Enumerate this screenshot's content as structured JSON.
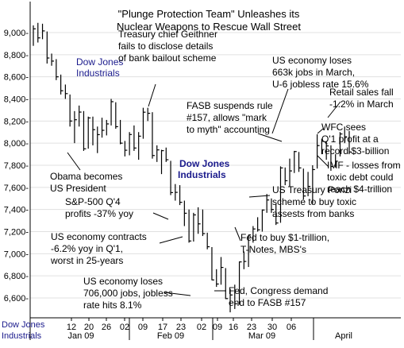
{
  "chart_data": {
    "type": "ohlc",
    "title_lines": [
      "\"Plunge Protection Team\" Unleashes its",
      "Nuclear Weapons to Rescue Wall Street"
    ],
    "series_name_lines": [
      "Dow Jones",
      "Industrials"
    ],
    "ylim": [
      6450,
      9150
    ],
    "y_ticks": [
      {
        "value": 9000,
        "label": "9,000-"
      },
      {
        "value": 8800,
        "label": "8,800-"
      },
      {
        "value": 8600,
        "label": "8,600-"
      },
      {
        "value": 8400,
        "label": "8,400-"
      },
      {
        "value": 8200,
        "label": "8,200-"
      },
      {
        "value": 8000,
        "label": "8,000-"
      },
      {
        "value": 7800,
        "label": "7,800-"
      },
      {
        "value": 7600,
        "label": "7,600-"
      },
      {
        "value": 7400,
        "label": "7,400-"
      },
      {
        "value": 7200,
        "label": "7,200-"
      },
      {
        "value": 7000,
        "label": "7,000-"
      },
      {
        "value": 6800,
        "label": "6,800-"
      },
      {
        "value": 6600,
        "label": "6,600-"
      }
    ],
    "x_tick_labels": [
      "12",
      "20",
      "26",
      "02",
      "09",
      "17",
      "23",
      "02",
      "09",
      "16",
      "23",
      "30",
      "06"
    ],
    "month_labels": [
      "Jan 09",
      "Feb 09",
      "Mar 09",
      "April"
    ],
    "x_axis_corner_label_lines": [
      "Dow Jones",
      "Industrials"
    ],
    "bars": [
      {
        "label": "Jan 02",
        "high": 9065,
        "low": 8880,
        "close": 9034
      },
      {
        "label": "Jan 05",
        "high": 9088,
        "low": 8910,
        "close": 8952
      },
      {
        "label": "Jan 06",
        "high": 9080,
        "low": 8940,
        "close": 9015
      },
      {
        "label": "Jan 07",
        "high": 9010,
        "low": 8720,
        "close": 8770
      },
      {
        "label": "Jan 08",
        "high": 8810,
        "low": 8700,
        "close": 8742
      },
      {
        "label": "Jan 09",
        "high": 8760,
        "low": 8570,
        "close": 8600
      },
      {
        "label": "Jan 12",
        "high": 8620,
        "low": 8440,
        "close": 8474
      },
      {
        "label": "Jan 13",
        "high": 8530,
        "low": 8400,
        "close": 8448
      },
      {
        "label": "Jan 14",
        "high": 8440,
        "low": 8150,
        "close": 8200
      },
      {
        "label": "Jan 15",
        "high": 8290,
        "low": 8000,
        "close": 8212
      },
      {
        "label": "Jan 16",
        "high": 8340,
        "low": 8150,
        "close": 8281
      },
      {
        "label": "Jan 20",
        "high": 8290,
        "low": 7930,
        "close": 7949
      },
      {
        "label": "Jan 21",
        "high": 8240,
        "low": 7950,
        "close": 8228
      },
      {
        "label": "Jan 22",
        "high": 8240,
        "low": 7980,
        "close": 8122
      },
      {
        "label": "Jan 23",
        "high": 8150,
        "low": 7910,
        "close": 8077
      },
      {
        "label": "Jan 26",
        "high": 8230,
        "low": 8050,
        "close": 8116
      },
      {
        "label": "Jan 27",
        "high": 8210,
        "low": 8070,
        "close": 8174
      },
      {
        "label": "Jan 28",
        "high": 8400,
        "low": 8160,
        "close": 8375
      },
      {
        "label": "Jan 29",
        "high": 8370,
        "low": 8130,
        "close": 8149
      },
      {
        "label": "Jan 30",
        "high": 8210,
        "low": 7990,
        "close": 8000
      },
      {
        "label": "Feb 02",
        "high": 8020,
        "low": 7880,
        "close": 7936
      },
      {
        "label": "Feb 03",
        "high": 8100,
        "low": 7890,
        "close": 8078
      },
      {
        "label": "Feb 04",
        "high": 8160,
        "low": 7930,
        "close": 7956
      },
      {
        "label": "Feb 05",
        "high": 8100,
        "low": 7850,
        "close": 8063
      },
      {
        "label": "Feb 06",
        "high": 8320,
        "low": 8040,
        "close": 8280
      },
      {
        "label": "Feb 09",
        "high": 8320,
        "low": 8200,
        "close": 8270
      },
      {
        "label": "Feb 10",
        "high": 8280,
        "low": 7860,
        "close": 7888
      },
      {
        "label": "Feb 11",
        "high": 7980,
        "low": 7830,
        "close": 7939
      },
      {
        "label": "Feb 12",
        "high": 7940,
        "low": 7720,
        "close": 7932
      },
      {
        "label": "Feb 13",
        "high": 7960,
        "low": 7830,
        "close": 7850
      },
      {
        "label": "Feb 17",
        "high": 7840,
        "low": 7530,
        "close": 7553
      },
      {
        "label": "Feb 18",
        "high": 7630,
        "low": 7480,
        "close": 7555
      },
      {
        "label": "Feb 19",
        "high": 7620,
        "low": 7440,
        "close": 7465
      },
      {
        "label": "Feb 20",
        "high": 7480,
        "low": 7250,
        "close": 7366
      },
      {
        "label": "Feb 23",
        "high": 7400,
        "low": 7100,
        "close": 7115
      },
      {
        "label": "Feb 24",
        "high": 7370,
        "low": 7110,
        "close": 7351
      },
      {
        "label": "Feb 25",
        "high": 7420,
        "low": 7180,
        "close": 7270
      },
      {
        "label": "Feb 26",
        "high": 7400,
        "low": 7160,
        "close": 7182
      },
      {
        "label": "Feb 27",
        "high": 7190,
        "low": 7040,
        "close": 7063
      },
      {
        "label": "Mar 02",
        "high": 7060,
        "low": 6760,
        "close": 6763
      },
      {
        "label": "Mar 03",
        "high": 6860,
        "low": 6700,
        "close": 6726
      },
      {
        "label": "Mar 04",
        "high": 6970,
        "low": 6720,
        "close": 6876
      },
      {
        "label": "Mar 05",
        "high": 6870,
        "low": 6590,
        "close": 6594
      },
      {
        "label": "Mar 06",
        "high": 6680,
        "low": 6470,
        "close": 6627
      },
      {
        "label": "Mar 09",
        "high": 6720,
        "low": 6500,
        "close": 6547
      },
      {
        "label": "Mar 10",
        "high": 6930,
        "low": 6540,
        "close": 6926
      },
      {
        "label": "Mar 11",
        "high": 7020,
        "low": 6860,
        "close": 6930
      },
      {
        "label": "Mar 12",
        "high": 7170,
        "low": 6880,
        "close": 7170
      },
      {
        "label": "Mar 13",
        "high": 7250,
        "low": 7100,
        "close": 7224
      },
      {
        "label": "Mar 16",
        "high": 7330,
        "low": 7200,
        "close": 7216
      },
      {
        "label": "Mar 17",
        "high": 7400,
        "low": 7200,
        "close": 7395
      },
      {
        "label": "Mar 18",
        "high": 7540,
        "low": 7370,
        "close": 7486
      },
      {
        "label": "Mar 19",
        "high": 7500,
        "low": 7370,
        "close": 7400
      },
      {
        "label": "Mar 20",
        "high": 7450,
        "low": 7260,
        "close": 7278
      },
      {
        "label": "Mar 23",
        "high": 7790,
        "low": 7280,
        "close": 7776
      },
      {
        "label": "Mar 24",
        "high": 7780,
        "low": 7620,
        "close": 7660
      },
      {
        "label": "Mar 25",
        "high": 7860,
        "low": 7610,
        "close": 7749
      },
      {
        "label": "Mar 26",
        "high": 7930,
        "low": 7730,
        "close": 7924
      },
      {
        "label": "Mar 27",
        "high": 7920,
        "low": 7740,
        "close": 7776
      },
      {
        "label": "Mar 30",
        "high": 7770,
        "low": 7490,
        "close": 7522
      },
      {
        "label": "Mar 31",
        "high": 7740,
        "low": 7520,
        "close": 7609
      },
      {
        "label": "Apr 01",
        "high": 7800,
        "low": 7450,
        "close": 7761
      },
      {
        "label": "Apr 02",
        "high": 8080,
        "low": 7770,
        "close": 7978
      },
      {
        "label": "Apr 03",
        "high": 8040,
        "low": 7900,
        "close": 8017
      },
      {
        "label": "Apr 06",
        "high": 8020,
        "low": 7850,
        "close": 7975
      },
      {
        "label": "Apr 07",
        "high": 7980,
        "low": 7750,
        "close": 7789
      },
      {
        "label": "Apr 08",
        "high": 7900,
        "low": 7780,
        "close": 7837
      },
      {
        "label": "Apr 09",
        "high": 8100,
        "low": 7880,
        "close": 8083
      },
      {
        "label": "Apr 13",
        "high": 8150,
        "low": 8000,
        "close": 8058
      },
      {
        "label": "Apr 14",
        "high": 8110,
        "low": 7900,
        "close": 7920
      }
    ],
    "annotations": [
      {
        "lines": [
          "Treasury chief Geithner",
          "fails to disclose details",
          "of bank bailout scheme"
        ]
      },
      {
        "lines": [
          "US economy loses",
          "663k jobs in March,",
          "U-6 jobless rate 15.6%"
        ]
      },
      {
        "lines": [
          "Retail sales fall",
          "-1.2% in March"
        ]
      },
      {
        "lines": [
          "FASB suspends rule",
          "#157, allows \"mark",
          "to myth\" accounting"
        ]
      },
      {
        "lines": [
          "WFC sees",
          "Q'1 profit at a",
          "record $3-billion"
        ]
      },
      {
        "lines": [
          "Obama becomes",
          "US President"
        ]
      },
      {
        "lines": [
          "IMF - losses from",
          "toxic debt could",
          "reach $4-trillion"
        ]
      },
      {
        "lines": [
          "S&P-500 Q'4",
          "profits -37% yoy"
        ]
      },
      {
        "lines": [
          "US Treasury Ponzi",
          "scheme to buy toxic",
          "assests from banks"
        ]
      },
      {
        "lines": [
          "US economy contracts",
          "-6.2% yoy in Q'1,",
          "worst in 25-years"
        ]
      },
      {
        "lines": [
          "Fed to buy $1-trillion,",
          "T-Notes, MBS's"
        ]
      },
      {
        "lines": [
          "US economy loses",
          "706,000 jobs, jobless",
          "rate hits 8.1%"
        ]
      },
      {
        "lines": [
          "Fed, Congress demand",
          "end to FASB #157"
        ]
      }
    ],
    "colors": {
      "bar": "#000000",
      "text": "#000000",
      "series_label": "#1a1a8c",
      "grid": "#e0e0e0",
      "axis": "#000000"
    }
  }
}
